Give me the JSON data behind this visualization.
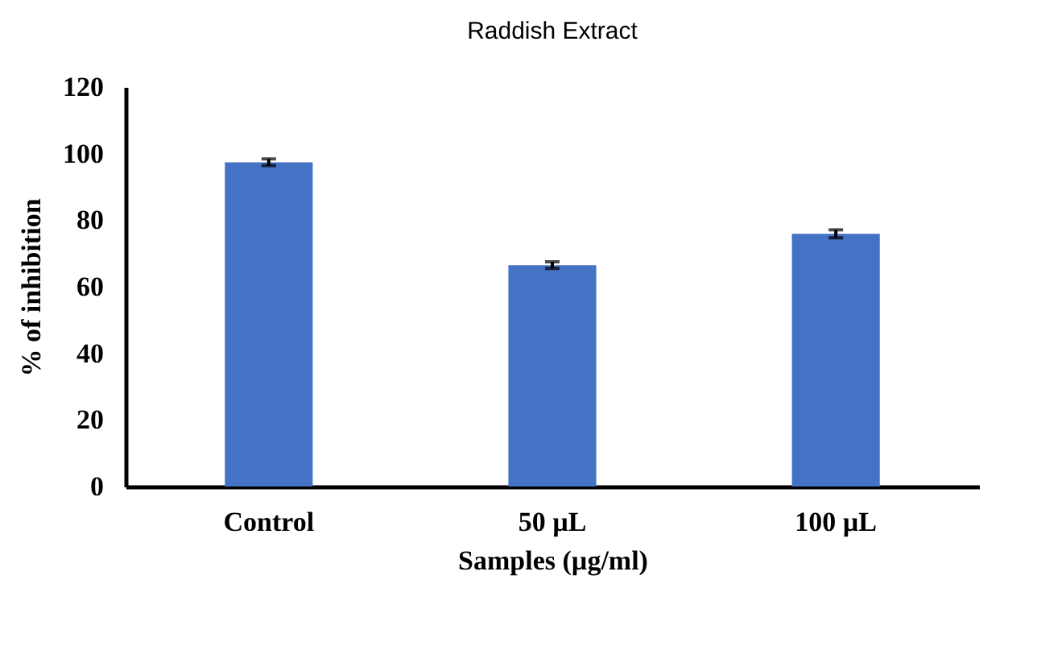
{
  "chart_data": {
    "type": "bar",
    "title": "Raddish Extract",
    "xlabel": "Samples (µg/ml)",
    "ylabel": "% of inhibition",
    "categories": [
      "Control",
      "50 µL",
      "100 µL"
    ],
    "values": [
      97.4,
      66.5,
      75.9
    ],
    "errors": [
      1,
      1,
      1.2
    ],
    "color": "#4472c4",
    "ylim": [
      0,
      120
    ],
    "yticks": [
      0,
      20,
      40,
      60,
      80,
      100,
      120
    ],
    "grid": false
  }
}
